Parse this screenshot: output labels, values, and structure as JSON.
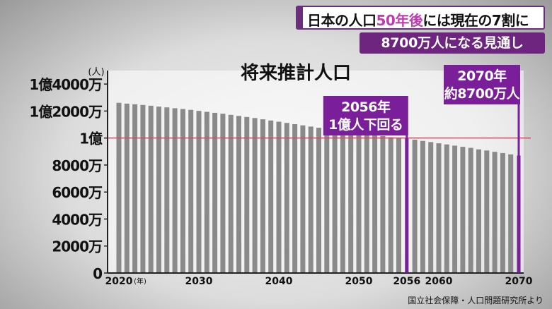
{
  "headline": {
    "part1": "日本の人口",
    "highlight": "50年後",
    "part2": "には現在の7割に"
  },
  "subline": "8700万人になる見通し",
  "source": "国立社会保障・人口問題研究所より",
  "colors": {
    "bar": "#8a8a8a",
    "highlight": "#7a1e9a",
    "reference": "#d9485f",
    "axis": "#222222"
  },
  "chart_data": {
    "type": "bar",
    "title": "将来推計人口",
    "unit_label": "(人)",
    "year_unit_label": "(年)",
    "ylim": [
      0,
      150000000
    ],
    "yticks": [
      {
        "value": 0,
        "label": "0"
      },
      {
        "value": 20000000,
        "label": "2000万"
      },
      {
        "value": 40000000,
        "label": "4000万"
      },
      {
        "value": 60000000,
        "label": "6000万"
      },
      {
        "value": 80000000,
        "label": "8000万"
      },
      {
        "value": 100000000,
        "label": "1億"
      },
      {
        "value": 120000000,
        "label": "1億2000万"
      },
      {
        "value": 140000000,
        "label": "1億4000万"
      }
    ],
    "xticks": [
      2020,
      2030,
      2040,
      2050,
      2056,
      2060,
      2070
    ],
    "reference_line": 100000000,
    "years": [
      2020,
      2021,
      2022,
      2023,
      2024,
      2025,
      2026,
      2027,
      2028,
      2029,
      2030,
      2031,
      2032,
      2033,
      2034,
      2035,
      2036,
      2037,
      2038,
      2039,
      2040,
      2041,
      2042,
      2043,
      2044,
      2045,
      2046,
      2047,
      2048,
      2049,
      2050,
      2051,
      2052,
      2053,
      2054,
      2055,
      2056,
      2057,
      2058,
      2059,
      2060,
      2061,
      2062,
      2063,
      2064,
      2065,
      2066,
      2067,
      2068,
      2069,
      2070
    ],
    "values": [
      126100000,
      125500000,
      125000000,
      124500000,
      123900000,
      123300000,
      122700000,
      122100000,
      121500000,
      120900000,
      120100000,
      119400000,
      118700000,
      118000000,
      117200000,
      116400000,
      115600000,
      114800000,
      113900000,
      113000000,
      112100000,
      111200000,
      110300000,
      109400000,
      108500000,
      107600000,
      106700000,
      105800000,
      104900000,
      104000000,
      104700000,
      103600000,
      102500000,
      101500000,
      100600000,
      100100000,
      99700000,
      98800000,
      97900000,
      97000000,
      96100000,
      95300000,
      94400000,
      93500000,
      92700000,
      91600000,
      90800000,
      89800000,
      88900000,
      87900000,
      87000000
    ],
    "highlights": [
      {
        "year": 2056,
        "label_lines": [
          "2056年",
          "1億人下回る"
        ]
      },
      {
        "year": 2070,
        "label_lines": [
          "2070年",
          "約8700万人"
        ]
      }
    ]
  }
}
